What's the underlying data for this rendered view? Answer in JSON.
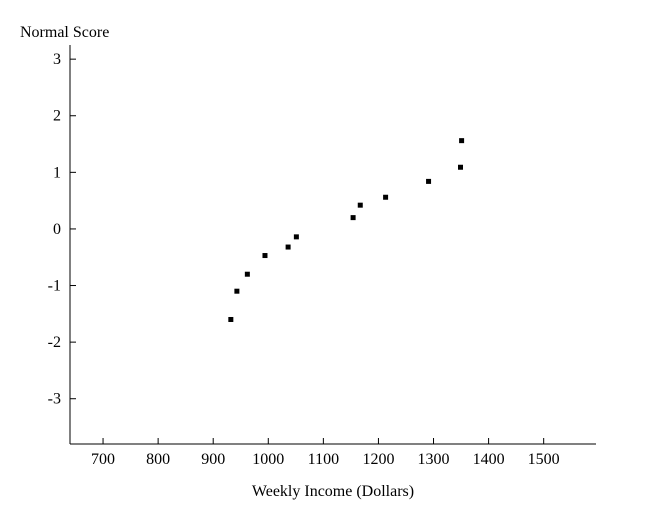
{
  "chart_data": {
    "type": "scatter",
    "title": "",
    "xlabel": "Weekly Income (Dollars)",
    "ylabel": "Normal Score",
    "xlim": [
      640,
      1595
    ],
    "ylim": [
      -3.8,
      3.25
    ],
    "xticks": [
      700,
      800,
      900,
      1000,
      1100,
      1200,
      1300,
      1400,
      1500
    ],
    "yticks": [
      3,
      2,
      1,
      0,
      -1,
      -2,
      -3
    ],
    "xtick_labels": [
      "700",
      "800",
      "900",
      "1000",
      "1100",
      "1200",
      "1300",
      "1400",
      "1500"
    ],
    "ytick_labels": [
      "3",
      "2",
      "1",
      "0",
      "-1",
      "-2",
      "-3"
    ],
    "grid": false,
    "legend": "none",
    "marker_color": "#000000",
    "series": [
      {
        "points": [
          {
            "x": 932,
            "y": -1.6
          },
          {
            "x": 943,
            "y": -1.1
          },
          {
            "x": 962,
            "y": -0.8
          },
          {
            "x": 994,
            "y": -0.47
          },
          {
            "x": 1036,
            "y": -0.32
          },
          {
            "x": 1051,
            "y": -0.14
          },
          {
            "x": 1154,
            "y": 0.2
          },
          {
            "x": 1167,
            "y": 0.42
          },
          {
            "x": 1213,
            "y": 0.56
          },
          {
            "x": 1291,
            "y": 0.84
          },
          {
            "x": 1349,
            "y": 1.09
          },
          {
            "x": 1351,
            "y": 1.56
          }
        ]
      }
    ]
  }
}
